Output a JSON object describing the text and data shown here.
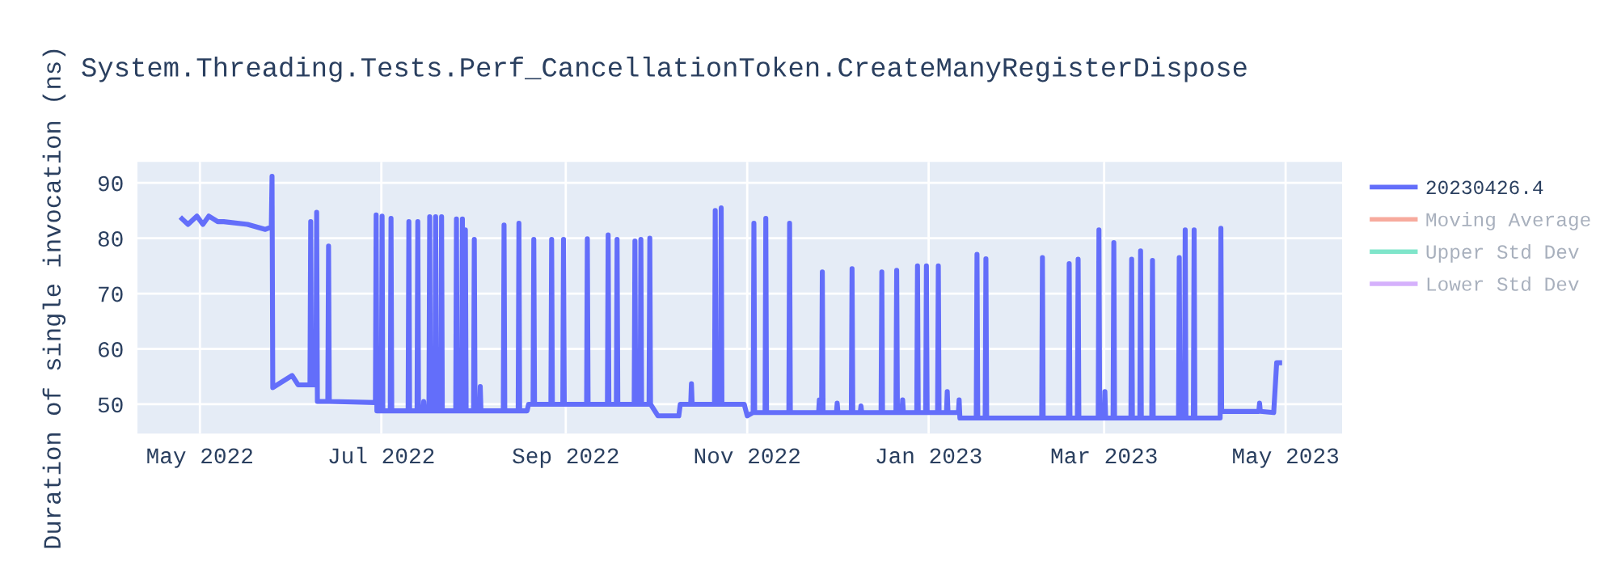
{
  "chart_data": {
    "type": "line",
    "title": "System.Threading.Tests.Perf_CancellationToken.CreateManyRegisterDispose",
    "ylabel": "Duration of single invocation (ns)",
    "x": [
      "2022-04-25",
      "2022-04-27",
      "2022-04-30",
      "2022-05-02",
      "2022-05-04",
      "2022-05-07",
      "2022-05-09",
      "2022-05-17",
      "2022-05-23",
      "2022-05-25T00:00",
      "2022-05-25T06:00",
      "2022-05-25T12:00",
      "2022-06-01",
      "2022-06-03",
      "2022-06-07T00:00",
      "2022-06-07T06:00",
      "2022-06-07T12:00",
      "2022-06-09T00:00",
      "2022-06-09T06:00",
      "2022-06-09T12:00",
      "2022-06-13T00:00",
      "2022-06-13T06:00",
      "2022-06-13T12:00",
      "2022-06-29T00:00",
      "2022-06-29T06:00",
      "2022-06-29T12:00",
      "2022-07-01T00:00",
      "2022-07-01T06:00",
      "2022-07-01T12:00",
      "2022-07-04T00:00",
      "2022-07-04T06:00",
      "2022-07-04T12:00",
      "2022-07-10T00:00",
      "2022-07-10T06:00",
      "2022-07-10T12:00",
      "2022-07-13T00:00",
      "2022-07-13T06:00",
      "2022-07-13T12:00",
      "2022-07-15T00:00",
      "2022-07-15T06:00",
      "2022-07-15T12:00",
      "2022-07-17T00:00",
      "2022-07-17T06:00",
      "2022-07-17T12:00",
      "2022-07-19T00:00",
      "2022-07-19T06:00",
      "2022-07-19T12:00",
      "2022-07-21T00:00",
      "2022-07-21T06:00",
      "2022-07-21T12:00",
      "2022-07-26T00:00",
      "2022-07-26T06:00",
      "2022-07-26T12:00",
      "2022-07-28T00:00",
      "2022-07-28T06:00",
      "2022-07-28T12:00",
      "2022-07-29T00:00",
      "2022-07-29T06:00",
      "2022-07-29T12:00",
      "2022-08-01T00:00",
      "2022-08-01T06:00",
      "2022-08-01T12:00",
      "2022-08-03T00:00",
      "2022-08-03T06:00",
      "2022-08-03T12:00",
      "2022-08-11T00:00",
      "2022-08-11T06:00",
      "2022-08-11T12:00",
      "2022-08-16T00:00",
      "2022-08-16T06:00",
      "2022-08-16T12:00",
      "2022-08-19T00:00",
      "2022-08-19T12:00",
      "2022-08-21T00:00",
      "2022-08-21T06:00",
      "2022-08-21T12:00",
      "2022-08-27T00:00",
      "2022-08-27T06:00",
      "2022-08-27T12:00",
      "2022-08-31T00:00",
      "2022-08-31T06:00",
      "2022-08-31T12:00",
      "2022-09-08T00:00",
      "2022-09-08T06:00",
      "2022-09-08T12:00",
      "2022-09-15T00:00",
      "2022-09-15T06:00",
      "2022-09-15T12:00",
      "2022-09-18T00:00",
      "2022-09-18T06:00",
      "2022-09-18T12:00",
      "2022-09-24T00:00",
      "2022-09-24T06:00",
      "2022-09-24T12:00",
      "2022-09-26T00:00",
      "2022-09-26T06:00",
      "2022-09-26T12:00",
      "2022-09-29T00:00",
      "2022-09-29T06:00",
      "2022-09-29T12:00",
      "2022-10-02T00:00",
      "2022-10-09T00:00",
      "2022-10-09T12:00",
      "2022-10-13T00:00",
      "2022-10-13T06:00",
      "2022-10-13T12:00",
      "2022-10-21T00:00",
      "2022-10-21T06:00",
      "2022-10-21T12:00",
      "2022-10-23T00:00",
      "2022-10-23T06:00",
      "2022-10-23T12:00",
      "2022-10-31T00:00",
      "2022-11-01T00:00",
      "2022-11-03T00:00",
      "2022-11-03T06:00",
      "2022-11-03T12:00",
      "2022-11-07T00:00",
      "2022-11-07T06:00",
      "2022-11-07T12:00",
      "2022-11-15T00:00",
      "2022-11-15T06:00",
      "2022-11-15T12:00",
      "2022-11-25T00:00",
      "2022-11-25T06:00",
      "2022-11-25T12:00",
      "2022-11-26T00:00",
      "2022-11-26T06:00",
      "2022-11-26T12:00",
      "2022-12-01T00:00",
      "2022-12-01T06:00",
      "2022-12-01T12:00",
      "2022-12-06T00:00",
      "2022-12-06T06:00",
      "2022-12-06T12:00",
      "2022-12-09T00:00",
      "2022-12-09T06:00",
      "2022-12-09T12:00",
      "2022-12-16T00:00",
      "2022-12-16T06:00",
      "2022-12-16T12:00",
      "2022-12-21T00:00",
      "2022-12-21T06:00",
      "2022-12-21T12:00",
      "2022-12-23T00:00",
      "2022-12-23T06:00",
      "2022-12-23T12:00",
      "2022-12-28T00:00",
      "2022-12-28T06:00",
      "2022-12-28T12:00",
      "2022-12-31T00:00",
      "2022-12-31T06:00",
      "2022-12-31T12:00",
      "2023-01-04T00:00",
      "2023-01-04T06:00",
      "2023-01-04T12:00",
      "2023-01-07T00:00",
      "2023-01-07T06:00",
      "2023-01-07T12:00",
      "2023-01-11T00:00",
      "2023-01-11T06:00",
      "2023-01-11T12:00",
      "2023-01-17T00:00",
      "2023-01-17T06:00",
      "2023-01-17T12:00",
      "2023-01-20T00:00",
      "2023-01-20T06:00",
      "2023-01-20T12:00",
      "2023-02-08T00:00",
      "2023-02-08T06:00",
      "2023-02-08T12:00",
      "2023-02-17T00:00",
      "2023-02-17T06:00",
      "2023-02-17T12:00",
      "2023-02-20T00:00",
      "2023-02-20T06:00",
      "2023-02-20T12:00",
      "2023-02-27T00:00",
      "2023-02-27T06:00",
      "2023-02-27T12:00",
      "2023-03-01T00:00",
      "2023-03-01T06:00",
      "2023-03-01T12:00",
      "2023-03-04T00:00",
      "2023-03-04T06:00",
      "2023-03-04T12:00",
      "2023-03-10T00:00",
      "2023-03-10T06:00",
      "2023-03-10T12:00",
      "2023-03-13T00:00",
      "2023-03-13T06:00",
      "2023-03-13T12:00",
      "2023-03-17T00:00",
      "2023-03-17T06:00",
      "2023-03-17T12:00",
      "2023-03-26T00:00",
      "2023-03-26T06:00",
      "2023-03-26T12:00",
      "2023-03-28T00:00",
      "2023-03-28T06:00",
      "2023-03-28T12:00",
      "2023-03-31T00:00",
      "2023-03-31T06:00",
      "2023-03-31T12:00",
      "2023-04-09T00:00",
      "2023-04-09T06:00",
      "2023-04-09T12:00",
      "2023-04-22T00:00",
      "2023-04-22T06:00",
      "2023-04-22T12:00",
      "2023-04-27T00:00",
      "2023-04-28T00:00",
      "2023-04-29T00:00"
    ],
    "series": [
      {
        "name": "20230426.4",
        "color": "#636efa",
        "values": [
          83.5,
          82.5,
          84,
          82.5,
          84,
          83,
          83,
          82.5,
          81.6,
          82,
          91.2,
          53,
          55.2,
          53.5,
          53.5,
          83,
          53.5,
          53.5,
          84.7,
          50.5,
          50.5,
          78.6,
          50.5,
          50.3,
          84.2,
          48.8,
          48.8,
          84,
          48.8,
          48.8,
          83.6,
          48.8,
          48.8,
          83,
          48.8,
          48.8,
          83,
          48.8,
          48.8,
          50.5,
          48.8,
          48.8,
          83.9,
          48.8,
          48.8,
          83.9,
          48.8,
          48.8,
          83.9,
          48.8,
          48.8,
          83.5,
          48.8,
          48.8,
          83.5,
          48.8,
          48.8,
          81.5,
          48.8,
          48.8,
          79.8,
          48.8,
          48.8,
          53.2,
          48.8,
          48.8,
          82.4,
          48.8,
          48.8,
          82.7,
          48.8,
          48.8,
          50,
          50,
          79.8,
          50,
          50,
          79.8,
          50,
          50,
          79.8,
          50,
          50,
          79.9,
          50,
          50,
          80.6,
          50,
          50,
          79.8,
          50,
          50,
          79.5,
          50,
          50,
          79.8,
          50,
          50,
          80,
          50,
          47.9,
          47.9,
          50,
          50,
          53.7,
          50,
          50,
          85,
          50,
          50,
          85.5,
          50,
          50,
          47.9,
          48.5,
          82.7,
          48.5,
          48.5,
          83.6,
          48.5,
          48.5,
          82.7,
          48.5,
          48.5,
          50.8,
          48.5,
          48.5,
          73.9,
          48.5,
          48.5,
          50.2,
          48.5,
          48.5,
          74.5,
          48.5,
          48.5,
          49.7,
          48.5,
          48.5,
          73.9,
          48.5,
          48.5,
          74.2,
          48.5,
          48.5,
          50.8,
          48.5,
          48.5,
          75,
          48.5,
          48.5,
          75,
          48.5,
          48.5,
          75,
          48.5,
          48.5,
          52.3,
          48.5,
          48.5,
          50.8,
          47.5,
          47.5,
          77.1,
          47.5,
          47.5,
          76.3,
          47.5,
          47.5,
          76.5,
          47.5,
          47.5,
          75.4,
          47.5,
          47.5,
          76.2,
          47.5,
          47.5,
          81.5,
          47.5,
          47.5,
          52.3,
          47.5,
          47.5,
          79.2,
          47.5,
          47.5,
          76.2,
          47.5,
          47.5,
          77.7,
          47.5,
          47.5,
          76,
          47.5,
          47.5,
          76.5,
          47.5,
          47.5,
          81.5,
          47.5,
          47.5,
          81.5,
          47.5,
          47.5,
          81.8,
          48.7,
          48.7,
          50.2,
          48.7,
          48.5,
          57.5,
          57.5
        ]
      },
      {
        "name": "Moving Average",
        "color": "#ef553b",
        "values": [
          null,
          null,
          null,
          null,
          null,
          null,
          null,
          null,
          null,
          null,
          null,
          null,
          null,
          null,
          null,
          null,
          null,
          null,
          null,
          null,
          null,
          null,
          null,
          null,
          null,
          null,
          null,
          null,
          null,
          null,
          null,
          null,
          null,
          null,
          null,
          null,
          null,
          null,
          null,
          null,
          null,
          null,
          null,
          null,
          null,
          null,
          null,
          null,
          null,
          null,
          null,
          null,
          null,
          null,
          null,
          null,
          null,
          null,
          null,
          null,
          null,
          null,
          null,
          null,
          null,
          null,
          null,
          null,
          null,
          null,
          null,
          null,
          null,
          null,
          null,
          null,
          null,
          null,
          null,
          null,
          null,
          null,
          null,
          null,
          null,
          null,
          null,
          null,
          null,
          null,
          null,
          null,
          null,
          null,
          null,
          null,
          null,
          null,
          null,
          null,
          null,
          null,
          null,
          null,
          null,
          null,
          null,
          null,
          null,
          null,
          null,
          null,
          null,
          null,
          null,
          null,
          null,
          null,
          null,
          null,
          null,
          null,
          null,
          null,
          null,
          null,
          null,
          null,
          null,
          null,
          null,
          null,
          null,
          null,
          null,
          null,
          null,
          null,
          null,
          null,
          null,
          null,
          null,
          null,
          null,
          null,
          null,
          null,
          null,
          null,
          null,
          null,
          null,
          null,
          null,
          null,
          null,
          null,
          null,
          null,
          null,
          null,
          null,
          null,
          null,
          null,
          null,
          null,
          null,
          null,
          null,
          null,
          null,
          null,
          null,
          null,
          null,
          null,
          null,
          null,
          null,
          null,
          null,
          null,
          null,
          null,
          null,
          null,
          null,
          null,
          null,
          null,
          null,
          null,
          null,
          null,
          null,
          null,
          null,
          null,
          null,
          null,
          null,
          null,
          null,
          null,
          null,
          null,
          null,
          null,
          null,
          null,
          null
        ]
      },
      {
        "name": "Upper Std Dev",
        "color": "#00cc96",
        "values": [
          null,
          null,
          null,
          null,
          null,
          null,
          null,
          null,
          null,
          null,
          null,
          null,
          null,
          null,
          null,
          null,
          null,
          null,
          null,
          null,
          null,
          null,
          null,
          null,
          null,
          null,
          null,
          null,
          null,
          null,
          null,
          null,
          null,
          null,
          null,
          null,
          null,
          null,
          null,
          null,
          null,
          null,
          null,
          null,
          null,
          null,
          null,
          null,
          null,
          null,
          null,
          null,
          null,
          null,
          null,
          null,
          null,
          null,
          null,
          null,
          null,
          null,
          null,
          null,
          null,
          null,
          null,
          null,
          null,
          null,
          null,
          null,
          null,
          null,
          null,
          null,
          null,
          null,
          null,
          null,
          null,
          null,
          null,
          null,
          null,
          null,
          null,
          null,
          null,
          null,
          null,
          null,
          null,
          null,
          null,
          null,
          null,
          null,
          null,
          null,
          null,
          null,
          null,
          null,
          null,
          null,
          null,
          null,
          null,
          null,
          null,
          null,
          null,
          null,
          null,
          null,
          null,
          null,
          null,
          null,
          null,
          null,
          null,
          null,
          null,
          null,
          null,
          null,
          null,
          null,
          null,
          null,
          null,
          null,
          null,
          null,
          null,
          null,
          null,
          null,
          null,
          null,
          null,
          null,
          null,
          null,
          null,
          null,
          null,
          null,
          null,
          null,
          null,
          null,
          null,
          null,
          null,
          null,
          null,
          null,
          null,
          null,
          null,
          null,
          null,
          null,
          null,
          null,
          null,
          null,
          null,
          null,
          null,
          null,
          null,
          null,
          null,
          null,
          null,
          null,
          null,
          null,
          null,
          null,
          null,
          null,
          null,
          null,
          null,
          null,
          null,
          null,
          null,
          null,
          null,
          null,
          null,
          null,
          null,
          null,
          null,
          null,
          null,
          null,
          null,
          null,
          null,
          null,
          null,
          null,
          null,
          null,
          null
        ]
      },
      {
        "name": "Lower Std Dev",
        "color": "#ab63fa",
        "values": [
          null,
          null,
          null,
          null,
          null,
          null,
          null,
          null,
          null,
          null,
          null,
          null,
          null,
          null,
          null,
          null,
          null,
          null,
          null,
          null,
          null,
          null,
          null,
          null,
          null,
          null,
          null,
          null,
          null,
          null,
          null,
          null,
          null,
          null,
          null,
          null,
          null,
          null,
          null,
          null,
          null,
          null,
          null,
          null,
          null,
          null,
          null,
          null,
          null,
          null,
          null,
          null,
          null,
          null,
          null,
          null,
          null,
          null,
          null,
          null,
          null,
          null,
          null,
          null,
          null,
          null,
          null,
          null,
          null,
          null,
          null,
          null,
          null,
          null,
          null,
          null,
          null,
          null,
          null,
          null,
          null,
          null,
          null,
          null,
          null,
          null,
          null,
          null,
          null,
          null,
          null,
          null,
          null,
          null,
          null,
          null,
          null,
          null,
          null,
          null,
          null,
          null,
          null,
          null,
          null,
          null,
          null,
          null,
          null,
          null,
          null,
          null,
          null,
          null,
          null,
          null,
          null,
          null,
          null,
          null,
          null,
          null,
          null,
          null,
          null,
          null,
          null,
          null,
          null,
          null,
          null,
          null,
          null,
          null,
          null,
          null,
          null,
          null,
          null,
          null,
          null,
          null,
          null,
          null,
          null,
          null,
          null,
          null,
          null,
          null,
          null,
          null,
          null,
          null,
          null,
          null,
          null,
          null,
          null,
          null,
          null,
          null,
          null,
          null,
          null,
          null,
          null,
          null,
          null,
          null,
          null,
          null,
          null,
          null,
          null,
          null,
          null,
          null,
          null,
          null,
          null,
          null,
          null,
          null,
          null,
          null,
          null,
          null,
          null,
          null,
          null,
          null,
          null,
          null,
          null,
          null,
          null,
          null,
          null,
          null,
          null,
          null,
          null,
          null,
          null,
          null,
          null,
          null,
          null,
          null,
          null,
          null,
          null
        ]
      }
    ],
    "xlim": [
      "2022-04-10",
      "2023-05-20"
    ],
    "xticks": [
      {
        "value": "2022-05-01",
        "label": "May 2022"
      },
      {
        "value": "2022-07-01",
        "label": "Jul 2022"
      },
      {
        "value": "2022-09-01",
        "label": "Sep 2022"
      },
      {
        "value": "2022-11-01",
        "label": "Nov 2022"
      },
      {
        "value": "2023-01-01",
        "label": "Jan 2023"
      },
      {
        "value": "2023-03-01",
        "label": "Mar 2023"
      },
      {
        "value": "2023-05-01",
        "label": "May 2023"
      }
    ],
    "ylim": [
      44.7,
      93.8
    ],
    "yticks": [
      50,
      60,
      70,
      80,
      90
    ],
    "grid": true,
    "legend": "top right",
    "line_style": "solid"
  }
}
